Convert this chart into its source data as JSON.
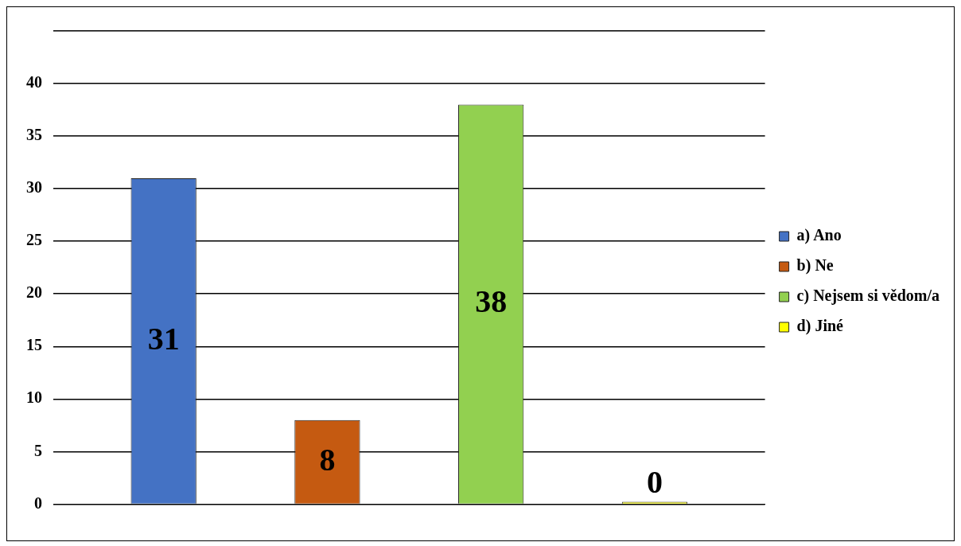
{
  "chart_data": {
    "type": "bar",
    "categories": [
      null
    ],
    "series": [
      {
        "name": "a) Ano",
        "color": "#4472c4",
        "values": [
          31
        ]
      },
      {
        "name": "b) Ne",
        "color": "#c55a11",
        "values": [
          8
        ]
      },
      {
        "name": "c) Nejsem si vědom/a",
        "color": "#92d050",
        "values": [
          38
        ]
      },
      {
        "name": "d) Jiné",
        "color": "#ffff00",
        "values": [
          0
        ]
      }
    ],
    "ylim": [
      0,
      45
    ],
    "yticks": [
      0,
      5,
      10,
      15,
      20,
      25,
      30,
      35,
      40,
      {
        "value": 45,
        "label": null
      }
    ],
    "grid": "y",
    "legend": "right",
    "data_labels": true
  }
}
